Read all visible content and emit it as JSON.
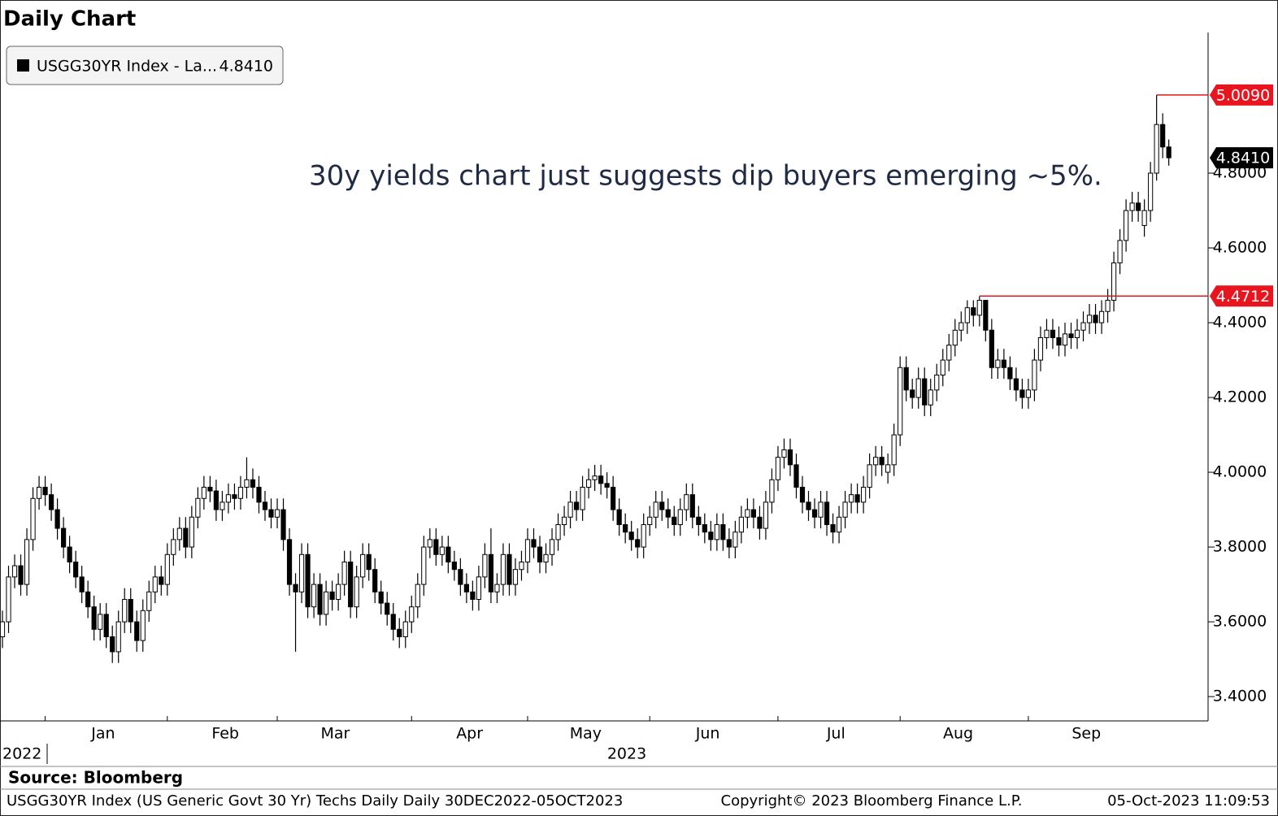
{
  "chart_data": {
    "type": "candlestick",
    "title": "Daily Chart",
    "annotation_text": "30y yields chart just suggests dip buyers emerging ~5%.",
    "source": "Source:  Bloomberg",
    "footer_left": "USGG30YR Index (US Generic Govt 30 Yr) Techs Daily  Daily 30DEC2022-05OCT2023",
    "footer_center": "Copyright© 2023 Bloomberg Finance L.P.",
    "footer_right": "05-Oct-2023 11:09:53",
    "year_labels": [
      "2022",
      "2023"
    ],
    "xlim": [
      -0.4,
      197.3
    ],
    "xticks": [
      {
        "value": 7,
        "label": "Jan"
      },
      {
        "value": 27,
        "label": "Feb"
      },
      {
        "value": 45,
        "label": "Mar"
      },
      {
        "value": 67,
        "label": "Apr"
      },
      {
        "value": 86,
        "label": "May"
      },
      {
        "value": 106,
        "label": "Jun"
      },
      {
        "value": 127,
        "label": "Jul"
      },
      {
        "value": 147,
        "label": "Aug"
      },
      {
        "value": 168,
        "label": "Sep"
      }
    ],
    "ylim": [
      3.335,
      5.175
    ],
    "yticks": [
      {
        "value": 3.4,
        "label": "3.4000"
      },
      {
        "value": 3.6,
        "label": "3.6000"
      },
      {
        "value": 3.8,
        "label": "3.8000"
      },
      {
        "value": 4.0,
        "label": "4.0000"
      },
      {
        "value": 4.2,
        "label": "4.2000"
      },
      {
        "value": 4.4,
        "label": "4.4000"
      },
      {
        "value": 4.6,
        "label": "4.6000"
      },
      {
        "value": 4.8,
        "label": "4.8000"
      }
    ],
    "levels": [
      {
        "x": 189,
        "value": 5.009,
        "label": "5.0090",
        "color": "#e8141e"
      },
      {
        "x": 160,
        "value": 4.4712,
        "label": "4.4712",
        "color": "#e8141e"
      }
    ],
    "series": [
      {
        "name": "USGG30YR Index - La...",
        "legend_value": {
          "value": 4.841,
          "label": "4.8410"
        },
        "up_color": "#ffffff",
        "down_color": "#000000",
        "open": [
          3.56,
          3.6,
          3.72,
          3.75,
          3.7,
          3.82,
          3.93,
          3.96,
          3.94,
          3.9,
          3.85,
          3.8,
          3.76,
          3.72,
          3.68,
          3.64,
          3.58,
          3.62,
          3.56,
          3.52,
          3.6,
          3.66,
          3.6,
          3.55,
          3.63,
          3.68,
          3.72,
          3.7,
          3.78,
          3.82,
          3.85,
          3.8,
          3.88,
          3.93,
          3.96,
          3.95,
          3.9,
          3.92,
          3.94,
          3.93,
          3.96,
          3.98,
          3.96,
          3.92,
          3.9,
          3.88,
          3.9,
          3.82,
          3.7,
          3.68,
          3.78,
          3.64,
          3.7,
          3.62,
          3.68,
          3.66,
          3.7,
          3.76,
          3.64,
          3.72,
          3.78,
          3.74,
          3.68,
          3.65,
          3.62,
          3.58,
          3.56,
          3.6,
          3.64,
          3.7,
          3.8,
          3.82,
          3.78,
          3.8,
          3.76,
          3.74,
          3.7,
          3.68,
          3.66,
          3.72,
          3.78,
          3.68,
          3.7,
          3.78,
          3.7,
          3.74,
          3.76,
          3.82,
          3.8,
          3.76,
          3.78,
          3.82,
          3.86,
          3.88,
          3.92,
          3.9,
          3.96,
          3.98,
          3.99,
          3.97,
          3.96,
          3.9,
          3.86,
          3.84,
          3.82,
          3.8,
          3.86,
          3.88,
          3.92,
          3.9,
          3.88,
          3.86,
          3.9,
          3.94,
          3.88,
          3.86,
          3.84,
          3.82,
          3.86,
          3.82,
          3.8,
          3.84,
          3.88,
          3.9,
          3.88,
          3.85,
          3.92,
          3.98,
          4.04,
          4.06,
          4.02,
          3.96,
          3.92,
          3.9,
          3.88,
          3.92,
          3.86,
          3.84,
          3.88,
          3.92,
          3.94,
          3.92,
          3.96,
          4.02,
          4.04,
          4.0,
          4.02,
          4.1,
          4.28,
          4.22,
          4.2,
          4.25,
          4.18,
          4.22,
          4.26,
          4.3,
          4.34,
          4.38,
          4.4,
          4.44,
          4.42,
          4.46,
          4.38,
          4.28,
          4.3,
          4.28,
          4.25,
          4.22,
          4.2,
          4.22,
          4.3,
          4.36,
          4.38,
          4.36,
          4.34,
          4.37,
          4.36,
          4.38,
          4.4,
          4.42,
          4.4,
          4.43,
          4.46,
          4.56,
          4.62,
          4.7,
          4.72,
          4.66,
          4.7,
          4.8,
          4.93,
          4.87
        ],
        "high": [
          3.63,
          3.75,
          3.78,
          3.78,
          3.85,
          3.96,
          3.99,
          3.99,
          3.97,
          3.93,
          3.88,
          3.83,
          3.79,
          3.75,
          3.71,
          3.67,
          3.65,
          3.65,
          3.59,
          3.63,
          3.69,
          3.69,
          3.63,
          3.66,
          3.71,
          3.75,
          3.75,
          3.81,
          3.85,
          3.88,
          3.88,
          3.91,
          3.96,
          3.99,
          3.99,
          3.98,
          3.95,
          3.97,
          3.97,
          3.99,
          4.04,
          4.01,
          3.99,
          3.95,
          3.93,
          3.93,
          3.93,
          3.85,
          3.73,
          3.81,
          3.81,
          3.73,
          3.73,
          3.71,
          3.71,
          3.73,
          3.79,
          3.79,
          3.75,
          3.81,
          3.81,
          3.77,
          3.71,
          3.68,
          3.65,
          3.61,
          3.63,
          3.67,
          3.73,
          3.83,
          3.85,
          3.85,
          3.83,
          3.83,
          3.79,
          3.77,
          3.73,
          3.71,
          3.75,
          3.81,
          3.85,
          3.73,
          3.81,
          3.81,
          3.77,
          3.79,
          3.85,
          3.85,
          3.83,
          3.81,
          3.85,
          3.89,
          3.91,
          3.95,
          3.95,
          3.99,
          4.01,
          4.02,
          4.02,
          4.0,
          3.99,
          3.93,
          3.89,
          3.87,
          3.85,
          3.89,
          3.91,
          3.95,
          3.95,
          3.93,
          3.91,
          3.93,
          3.97,
          3.97,
          3.91,
          3.89,
          3.87,
          3.89,
          3.89,
          3.85,
          3.87,
          3.91,
          3.93,
          3.93,
          3.91,
          3.95,
          4.01,
          4.07,
          4.09,
          4.09,
          4.05,
          3.99,
          3.95,
          3.93,
          3.95,
          3.95,
          3.89,
          3.91,
          3.95,
          3.97,
          3.97,
          3.99,
          4.05,
          4.07,
          4.07,
          4.05,
          4.13,
          4.31,
          4.31,
          4.25,
          4.28,
          4.28,
          4.25,
          4.29,
          4.33,
          4.37,
          4.41,
          4.43,
          4.46,
          4.46,
          4.4712,
          4.46,
          4.41,
          4.33,
          4.33,
          4.31,
          4.28,
          4.25,
          4.25,
          4.33,
          4.39,
          4.41,
          4.41,
          4.39,
          4.4,
          4.4,
          4.41,
          4.43,
          4.45,
          4.45,
          4.46,
          4.49,
          4.59,
          4.65,
          4.73,
          4.75,
          4.75,
          4.73,
          4.83,
          5.009,
          4.96,
          4.89
        ],
        "low": [
          3.53,
          3.57,
          3.69,
          3.67,
          3.67,
          3.79,
          3.9,
          3.91,
          3.87,
          3.82,
          3.77,
          3.73,
          3.69,
          3.65,
          3.61,
          3.55,
          3.55,
          3.53,
          3.49,
          3.49,
          3.57,
          3.57,
          3.52,
          3.52,
          3.6,
          3.65,
          3.67,
          3.67,
          3.75,
          3.79,
          3.77,
          3.77,
          3.85,
          3.9,
          3.92,
          3.87,
          3.87,
          3.89,
          3.9,
          3.9,
          3.93,
          3.93,
          3.89,
          3.87,
          3.85,
          3.85,
          3.79,
          3.67,
          3.52,
          3.65,
          3.61,
          3.61,
          3.59,
          3.59,
          3.63,
          3.63,
          3.67,
          3.61,
          3.61,
          3.69,
          3.71,
          3.65,
          3.62,
          3.59,
          3.55,
          3.53,
          3.53,
          3.57,
          3.61,
          3.67,
          3.77,
          3.75,
          3.75,
          3.73,
          3.71,
          3.67,
          3.65,
          3.63,
          3.63,
          3.69,
          3.65,
          3.65,
          3.67,
          3.67,
          3.67,
          3.71,
          3.73,
          3.77,
          3.73,
          3.73,
          3.75,
          3.79,
          3.83,
          3.85,
          3.87,
          3.87,
          3.93,
          3.95,
          3.94,
          3.93,
          3.87,
          3.83,
          3.81,
          3.79,
          3.77,
          3.77,
          3.83,
          3.85,
          3.87,
          3.85,
          3.83,
          3.83,
          3.87,
          3.85,
          3.83,
          3.81,
          3.79,
          3.79,
          3.79,
          3.77,
          3.77,
          3.81,
          3.85,
          3.85,
          3.82,
          3.82,
          3.89,
          3.95,
          4.01,
          3.99,
          3.93,
          3.89,
          3.87,
          3.85,
          3.85,
          3.83,
          3.81,
          3.81,
          3.85,
          3.89,
          3.89,
          3.89,
          3.93,
          3.99,
          3.99,
          3.97,
          3.99,
          4.07,
          4.19,
          4.17,
          4.17,
          4.15,
          4.15,
          4.19,
          4.23,
          4.27,
          4.31,
          4.35,
          4.37,
          4.39,
          4.39,
          4.35,
          4.25,
          4.25,
          4.25,
          4.22,
          4.19,
          4.17,
          4.17,
          4.19,
          4.27,
          4.33,
          4.33,
          4.31,
          4.31,
          4.33,
          4.33,
          4.35,
          4.37,
          4.37,
          4.37,
          4.4,
          4.43,
          4.53,
          4.59,
          4.67,
          4.67,
          4.63,
          4.67,
          4.78,
          4.84,
          4.82
        ],
        "close": [
          3.6,
          3.72,
          3.75,
          3.7,
          3.82,
          3.93,
          3.96,
          3.94,
          3.9,
          3.85,
          3.8,
          3.76,
          3.72,
          3.68,
          3.64,
          3.58,
          3.62,
          3.56,
          3.52,
          3.6,
          3.66,
          3.6,
          3.55,
          3.63,
          3.68,
          3.72,
          3.7,
          3.78,
          3.82,
          3.85,
          3.8,
          3.88,
          3.93,
          3.96,
          3.95,
          3.9,
          3.92,
          3.94,
          3.93,
          3.96,
          3.98,
          3.96,
          3.92,
          3.9,
          3.88,
          3.9,
          3.82,
          3.7,
          3.68,
          3.78,
          3.64,
          3.7,
          3.62,
          3.68,
          3.66,
          3.7,
          3.76,
          3.64,
          3.72,
          3.78,
          3.74,
          3.68,
          3.65,
          3.62,
          3.58,
          3.56,
          3.6,
          3.64,
          3.7,
          3.8,
          3.82,
          3.78,
          3.8,
          3.76,
          3.74,
          3.7,
          3.68,
          3.66,
          3.72,
          3.78,
          3.68,
          3.7,
          3.78,
          3.7,
          3.74,
          3.76,
          3.82,
          3.8,
          3.76,
          3.78,
          3.82,
          3.86,
          3.88,
          3.92,
          3.9,
          3.96,
          3.98,
          3.99,
          3.97,
          3.96,
          3.9,
          3.86,
          3.84,
          3.82,
          3.8,
          3.86,
          3.88,
          3.92,
          3.9,
          3.88,
          3.86,
          3.9,
          3.94,
          3.88,
          3.86,
          3.84,
          3.82,
          3.86,
          3.82,
          3.8,
          3.84,
          3.88,
          3.9,
          3.88,
          3.85,
          3.92,
          3.98,
          4.04,
          4.06,
          4.02,
          3.96,
          3.92,
          3.9,
          3.88,
          3.92,
          3.86,
          3.84,
          3.88,
          3.92,
          3.94,
          3.92,
          3.96,
          4.02,
          4.04,
          4.02,
          4.02,
          4.1,
          4.28,
          4.22,
          4.2,
          4.25,
          4.18,
          4.22,
          4.26,
          4.3,
          4.34,
          4.38,
          4.4,
          4.44,
          4.42,
          4.46,
          4.38,
          4.28,
          4.3,
          4.28,
          4.25,
          4.22,
          4.2,
          4.22,
          4.3,
          4.36,
          4.38,
          4.36,
          4.34,
          4.37,
          4.36,
          4.38,
          4.4,
          4.42,
          4.4,
          4.43,
          4.46,
          4.56,
          4.62,
          4.7,
          4.72,
          4.7,
          4.7,
          4.8,
          4.93,
          4.87,
          4.841
        ]
      }
    ]
  }
}
